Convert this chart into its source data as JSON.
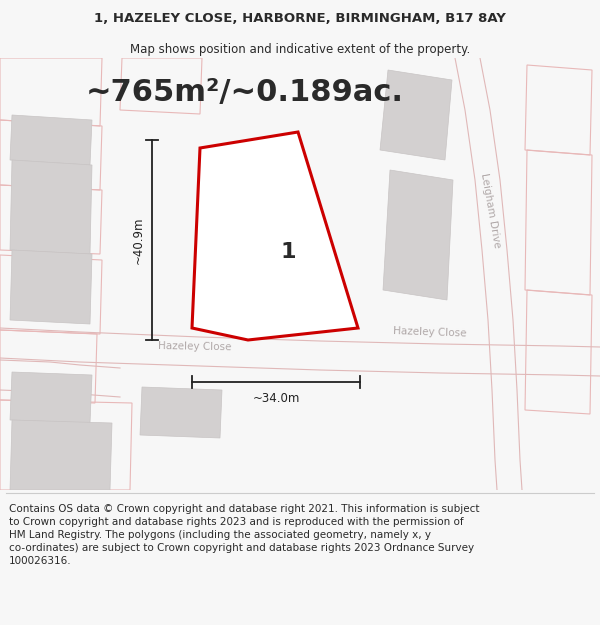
{
  "title_line1": "1, HAZELEY CLOSE, HARBORNE, BIRMINGHAM, B17 8AY",
  "title_line2": "Map shows position and indicative extent of the property.",
  "area_text": "~765m²/~0.189ac.",
  "label_number": "1",
  "dim_height": "~40.9m",
  "dim_width": "~34.0m",
  "street_label1": "Hazeley Close",
  "street_label2": "Hazeley Close",
  "road_label_rotated": "Leigham Drive",
  "footer_text": "Contains OS data © Crown copyright and database right 2021. This information is subject to Crown copyright and database rights 2023 and is reproduced with the permission of HM Land Registry. The polygons (including the associated geometry, namely x, y co-ordinates) are subject to Crown copyright and database rights 2023 Ordnance Survey 100026316.",
  "bg_color": "#f7f7f7",
  "map_bg": "#ece9e9",
  "plot_fill": "#ffffff",
  "plot_stroke": "#cc0000",
  "building_fill": "#d3d0d0",
  "road_fill": "#f7f7f7",
  "road_stroke": "#e0b8b8",
  "outline_stroke": "#e8b8b8",
  "text_dark": "#2a2a2a",
  "text_gray": "#b0a8a8",
  "dim_color": "#222222",
  "title_fs": 9.5,
  "subtitle_fs": 8.5,
  "area_fs": 22,
  "footer_fs": 7.5,
  "label_fs": 16
}
